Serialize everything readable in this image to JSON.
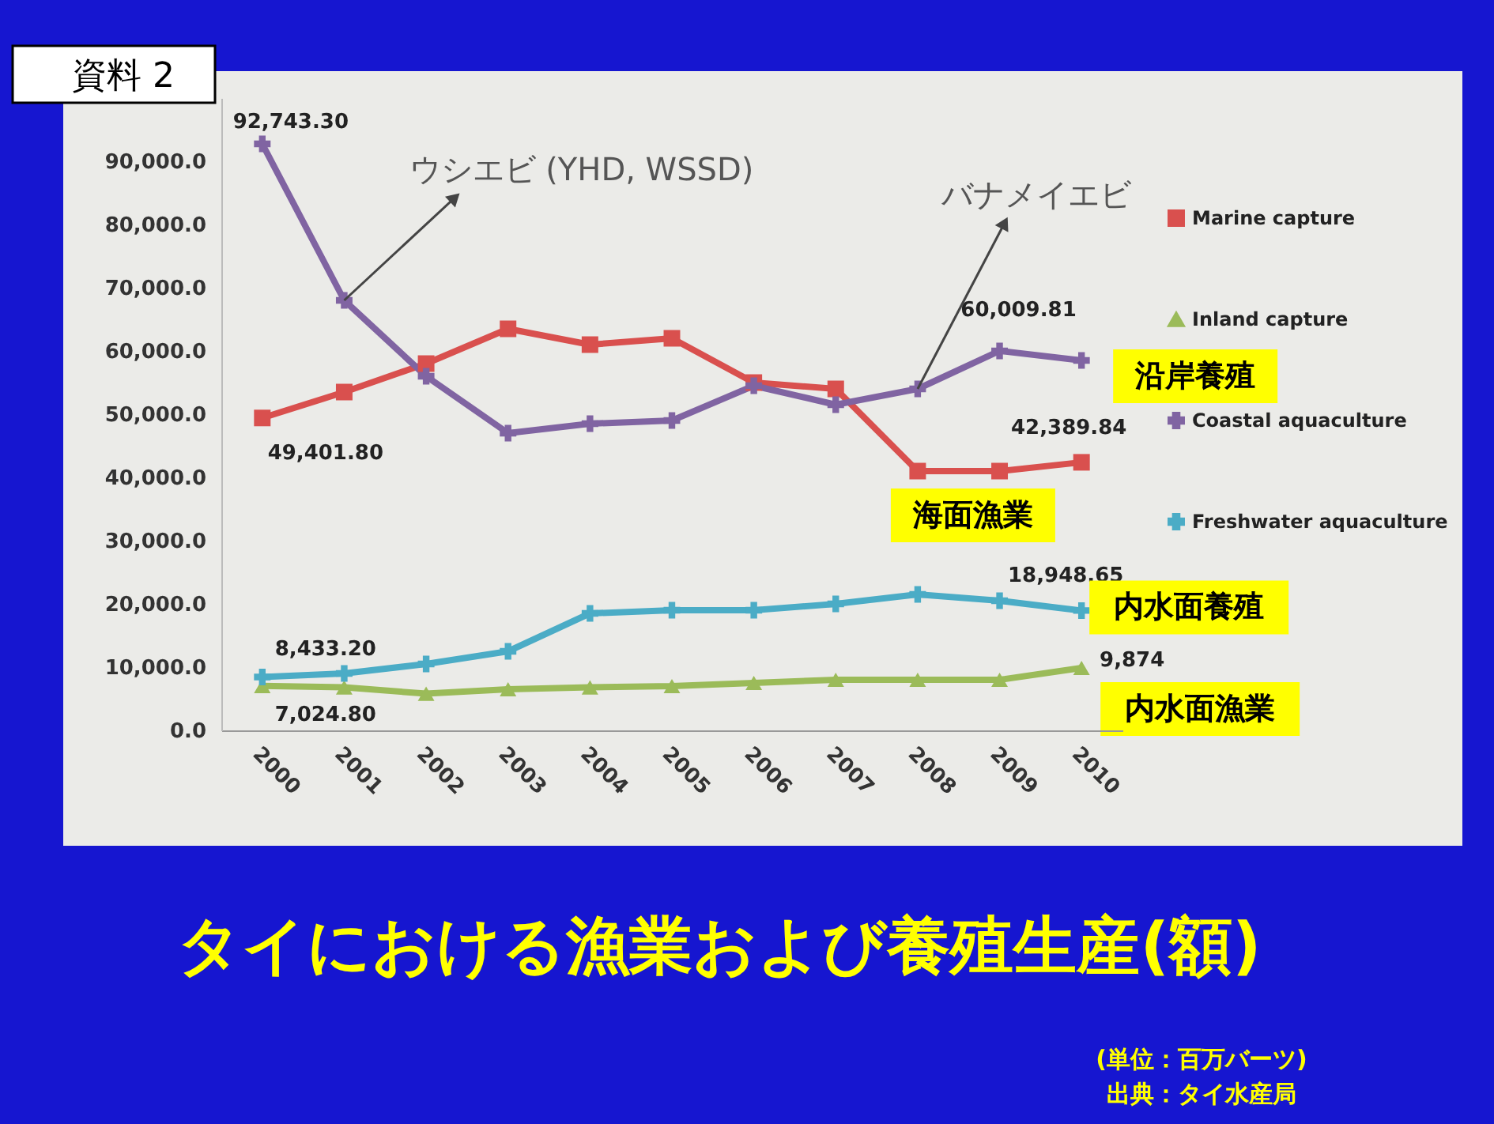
{
  "chart_data": {
    "type": "line",
    "title": "タイにおける漁業および養殖生産(額)",
    "categories": [
      "2000",
      "2001",
      "2002",
      "2003",
      "2004",
      "2005",
      "2006",
      "2007",
      "2008",
      "2009",
      "2010"
    ],
    "series": [
      {
        "name": "Marine capture",
        "color": "#d9504e",
        "marker": "square",
        "values": [
          49401.8,
          53500,
          58000,
          63500,
          61000,
          62000,
          55000,
          54000,
          41000,
          41000,
          42389.84
        ],
        "value_labels": [
          "49,401.80",
          null,
          null,
          null,
          null,
          null,
          null,
          null,
          null,
          null,
          "42,389.84"
        ]
      },
      {
        "name": "Inland capture",
        "color": "#9bbb59",
        "marker": "triangle",
        "values": [
          7024.8,
          6800,
          5800,
          6500,
          6800,
          7000,
          7500,
          8000,
          8000,
          8000,
          9874
        ],
        "value_labels": [
          "7,024.80",
          null,
          null,
          null,
          null,
          null,
          null,
          null,
          null,
          null,
          "9,874"
        ]
      },
      {
        "name": "Coastal aquaculture",
        "color": "#8064a2",
        "marker": "cross",
        "values": [
          92743.3,
          68000,
          56000,
          47000,
          48500,
          49000,
          54500,
          51500,
          54000,
          60009.81,
          58500
        ],
        "value_labels": [
          "92,743.30",
          null,
          null,
          null,
          null,
          null,
          null,
          null,
          null,
          "60,009.81",
          null
        ]
      },
      {
        "name": "Freshwater aquaculture",
        "color": "#4bacc6",
        "marker": "cross",
        "values": [
          8433.2,
          9000,
          10500,
          12500,
          18500,
          19000,
          19000,
          20000,
          21500,
          20500,
          18948.65
        ],
        "value_labels": [
          "8,433.20",
          null,
          null,
          null,
          null,
          null,
          null,
          null,
          null,
          null,
          "18,948.65"
        ]
      }
    ],
    "ylim": [
      0,
      100000
    ],
    "yticks": [
      {
        "value": 0,
        "label": "0.0"
      },
      {
        "value": 10000,
        "label": "10,000.0"
      },
      {
        "value": 20000,
        "label": "20,000.0"
      },
      {
        "value": 30000,
        "label": "30,000.0"
      },
      {
        "value": 40000,
        "label": "40,000.0"
      },
      {
        "value": 50000,
        "label": "50,000.0"
      },
      {
        "value": 60000,
        "label": "60,000.0"
      },
      {
        "value": 70000,
        "label": "70,000.0"
      },
      {
        "value": 80000,
        "label": "80,000.0"
      },
      {
        "value": 90000,
        "label": "90,000.0"
      }
    ],
    "grid": false,
    "legend": "right",
    "line_style": "solid",
    "annotations": [
      {
        "text": "ウシエビ (YHD, WSSD)",
        "x": "2001",
        "y": 68000
      },
      {
        "text": "バナメイエビ",
        "x": "2008",
        "y": 54000
      },
      {
        "text": "沿岸養殖",
        "x": "2010",
        "y": 58500
      },
      {
        "text": "海面漁業",
        "x": "2008",
        "y": 41000
      },
      {
        "text": "内水面養殖",
        "x": "2010",
        "y": 18948.65
      },
      {
        "text": "内水面漁業",
        "x": "2010",
        "y": 9874
      },
      "資料 2",
      "(単位：百万バーツ)",
      "出典：タイ水産局"
    ]
  }
}
